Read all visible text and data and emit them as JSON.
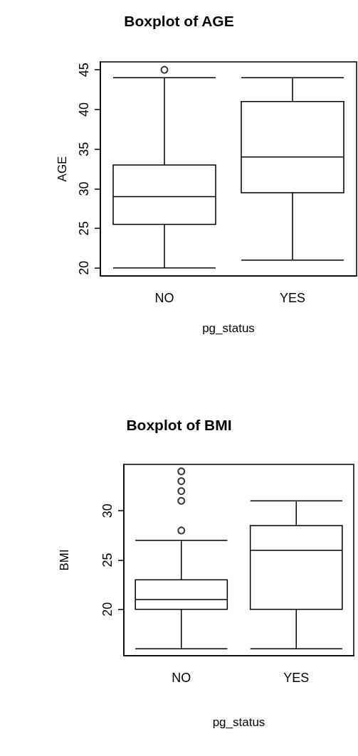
{
  "chart_data": [
    {
      "type": "box",
      "title": "Boxplot of AGE",
      "xlabel": "pg_status",
      "ylabel": "AGE",
      "categories": [
        "NO",
        "YES"
      ],
      "boxes": [
        {
          "low": 20,
          "q1": 25.5,
          "median": 29,
          "q3": 33,
          "high": 44,
          "outliers": [
            45
          ]
        },
        {
          "low": 21,
          "q1": 29.5,
          "median": 34,
          "q3": 41,
          "high": 44
        }
      ],
      "ylim": [
        19,
        46
      ],
      "yticks": [
        20,
        25,
        30,
        35,
        40,
        45
      ],
      "grid": false
    },
    {
      "type": "box",
      "title": "Boxplot of BMI",
      "xlabel": "pg_status",
      "ylabel": "BMI",
      "categories": [
        "NO",
        "YES"
      ],
      "boxes": [
        {
          "low": 16,
          "q1": 20,
          "median": 21,
          "q3": 23,
          "high": 27,
          "outliers": [
            28,
            31,
            32,
            33,
            34
          ]
        },
        {
          "low": 16,
          "q1": 20,
          "median": 26,
          "q3": 28.5,
          "high": 31
        }
      ],
      "ylim": [
        15.3,
        34.7
      ],
      "yticks": [
        20,
        25,
        30
      ],
      "grid": false
    }
  ]
}
